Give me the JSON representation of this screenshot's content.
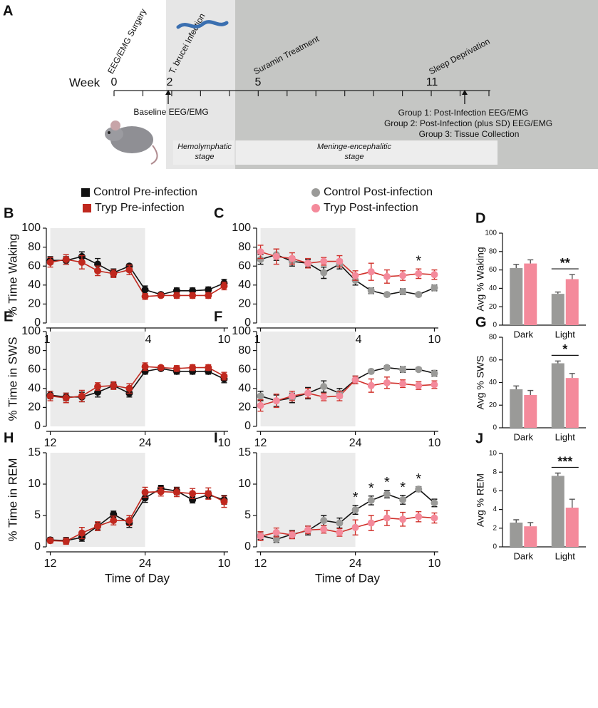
{
  "panel_a": {
    "label": "A",
    "axis_label": "Week",
    "weeks": [
      "0",
      "2",
      "5",
      "11"
    ],
    "events": {
      "surgery": "EEG/EMG Surgery",
      "infection": "T. brucei Infection",
      "treatment": "Suramin Treatment",
      "deprivation": "Sleep Deprivation"
    },
    "baseline": "Baseline EEG/EMG",
    "groups": [
      "Group 1: Post-Infection EEG/EMG",
      "Group 2: Post-Infection (plus SD) EEG/EMG",
      "Group 3: Tissue Collection"
    ],
    "stages": [
      [
        "Hemolymphatic",
        "stage"
      ],
      [
        "Meninge-encephalitic",
        "stage"
      ]
    ]
  },
  "chart_data": [
    {
      "type": "line",
      "panel": "B",
      "ylabel": "% Time Waking",
      "x": [
        12,
        14,
        16,
        18,
        20,
        22,
        24,
        26,
        28,
        30,
        32,
        34
      ],
      "xlim": [
        11.5,
        34.5
      ],
      "xticks": [
        12,
        24,
        {
          "value": 34,
          "label": "10"
        }
      ],
      "ylim": [
        0,
        100
      ],
      "yticks": [
        0,
        20,
        40,
        60,
        80,
        100
      ],
      "dark_phase": [
        12,
        24
      ],
      "series": [
        {
          "name": "Control Pre-infection",
          "color": "#111111",
          "line_color": "#111111",
          "values": [
            66,
            66,
            70,
            62,
            53,
            60,
            35,
            30,
            34,
            34,
            35,
            42
          ],
          "errors": [
            4,
            4,
            5,
            6,
            4,
            2,
            4,
            2,
            3,
            3,
            3,
            4
          ]
        },
        {
          "name": "Tryp Pre-infection",
          "color": "#c0281e",
          "line_color": "#c0281e",
          "values": [
            64,
            67,
            64,
            55,
            52,
            56,
            28,
            29,
            29,
            29,
            29,
            39
          ],
          "errors": [
            5,
            5,
            7,
            5,
            4,
            5,
            3,
            2,
            3,
            3,
            3,
            4
          ]
        }
      ]
    },
    {
      "type": "line",
      "panel": "C",
      "x": [
        12,
        14,
        16,
        18,
        20,
        22,
        24,
        26,
        28,
        30,
        32,
        34
      ],
      "xlim": [
        11.5,
        34.5
      ],
      "xticks": [
        12,
        24,
        {
          "value": 34,
          "label": "10"
        }
      ],
      "ylim": [
        0,
        100
      ],
      "yticks": [
        0,
        20,
        40,
        60,
        80,
        100
      ],
      "dark_phase": [
        12,
        24
      ],
      "series": [
        {
          "name": "Control Post-infection",
          "color": "#9a9a98",
          "line_color": "#111111",
          "values": [
            67,
            72,
            65,
            63,
            53,
            62,
            45,
            34,
            30,
            33,
            30,
            37
          ],
          "errors": [
            5,
            6,
            5,
            4,
            6,
            5,
            5,
            3,
            2,
            3,
            2,
            3
          ]
        },
        {
          "name": "Tryp Post-infection",
          "color": "#f48a9b",
          "line_color": "#d0302a",
          "values": [
            75,
            70,
            68,
            63,
            65,
            65,
            50,
            54,
            49,
            50,
            52,
            51
          ],
          "errors": [
            7,
            8,
            6,
            5,
            4,
            6,
            5,
            9,
            7,
            5,
            5,
            5
          ]
        }
      ],
      "annotations": [
        {
          "text": "*",
          "x": 32
        }
      ]
    },
    {
      "type": "bar",
      "panel": "D",
      "ylabel": "Avg % Waking",
      "categories": [
        "Dark",
        "Light"
      ],
      "ylim": [
        0,
        100
      ],
      "yticks": [
        0,
        20,
        40,
        60,
        80,
        100
      ],
      "series": [
        {
          "color": "#9a9a98",
          "values": [
            62,
            34
          ],
          "errors": [
            4,
            2
          ]
        },
        {
          "color": "#f48a9b",
          "values": [
            67,
            50
          ],
          "errors": [
            4,
            5
          ]
        }
      ],
      "annotations": [
        {
          "text": "**",
          "category": 1
        }
      ]
    },
    {
      "type": "line",
      "panel": "E",
      "ylabel": "% Time in SWS",
      "x": [
        12,
        14,
        16,
        18,
        20,
        22,
        24,
        26,
        28,
        30,
        32,
        34
      ],
      "xlim": [
        11.5,
        34.5
      ],
      "xticks": [
        12,
        24,
        {
          "value": 34,
          "label": "10"
        }
      ],
      "ylim": [
        0,
        100
      ],
      "yticks": [
        0,
        20,
        40,
        60,
        80,
        100
      ],
      "dark_phase": [
        12,
        24
      ],
      "series": [
        {
          "color": "#111111",
          "line_color": "#111111",
          "values": [
            33,
            31,
            31,
            36,
            43,
            35,
            58,
            61,
            58,
            58,
            58,
            50
          ],
          "errors": [
            4,
            4,
            5,
            5,
            3,
            4,
            3,
            2,
            3,
            3,
            3,
            4
          ]
        },
        {
          "color": "#c0281e",
          "line_color": "#c0281e",
          "values": [
            32,
            30,
            32,
            42,
            43,
            40,
            63,
            62,
            61,
            62,
            62,
            53
          ],
          "errors": [
            5,
            5,
            6,
            4,
            4,
            5,
            4,
            2,
            3,
            3,
            3,
            4
          ]
        }
      ]
    },
    {
      "type": "line",
      "panel": "F",
      "x": [
        12,
        14,
        16,
        18,
        20,
        22,
        24,
        26,
        28,
        30,
        32,
        34
      ],
      "xlim": [
        11.5,
        34.5
      ],
      "xticks": [
        12,
        24,
        {
          "value": 34,
          "label": "10"
        }
      ],
      "ylim": [
        0,
        100
      ],
      "yticks": [
        0,
        20,
        40,
        60,
        80,
        100
      ],
      "dark_phase": [
        12,
        24
      ],
      "series": [
        {
          "color": "#9a9a98",
          "line_color": "#111111",
          "values": [
            32,
            27,
            30,
            35,
            42,
            35,
            49,
            58,
            62,
            60,
            60,
            56
          ],
          "errors": [
            5,
            6,
            5,
            6,
            6,
            5,
            4,
            2,
            2,
            3,
            2,
            3
          ]
        },
        {
          "color": "#f48a9b",
          "line_color": "#d0302a",
          "values": [
            22,
            27,
            32,
            35,
            31,
            32,
            49,
            43,
            46,
            45,
            43,
            44
          ],
          "errors": [
            6,
            7,
            5,
            5,
            4,
            5,
            4,
            7,
            6,
            4,
            4,
            4
          ]
        }
      ]
    },
    {
      "type": "bar",
      "panel": "G",
      "ylabel": "Avg % SWS",
      "categories": [
        "Dark",
        "Light"
      ],
      "ylim": [
        0,
        80
      ],
      "yticks": [
        0,
        20,
        40,
        60,
        80
      ],
      "series": [
        {
          "color": "#9a9a98",
          "values": [
            34,
            57
          ],
          "errors": [
            3,
            2
          ]
        },
        {
          "color": "#f48a9b",
          "values": [
            29,
            44
          ],
          "errors": [
            4,
            4
          ]
        }
      ],
      "annotations": [
        {
          "text": "*",
          "category": 1
        }
      ]
    },
    {
      "type": "line",
      "panel": "H",
      "ylabel": "% Time in REM",
      "xlabel": "Time of Day",
      "x": [
        12,
        14,
        16,
        18,
        20,
        22,
        24,
        26,
        28,
        30,
        32,
        34
      ],
      "xlim": [
        11.5,
        34.5
      ],
      "xticks": [
        12,
        24,
        {
          "value": 34,
          "label": "10"
        }
      ],
      "ylim": [
        0,
        15
      ],
      "yticks": [
        0,
        5,
        10,
        15
      ],
      "dark_phase": [
        12,
        24
      ],
      "series": [
        {
          "color": "#111111",
          "line_color": "#111111",
          "values": [
            1.1,
            1.0,
            1.5,
            3.3,
            5.2,
            3.8,
            7.8,
            9.3,
            8.9,
            7.5,
            8.3,
            7.5
          ],
          "errors": [
            0.4,
            0.5,
            0.6,
            0.6,
            0.5,
            0.7,
            0.7,
            0.5,
            0.6,
            0.5,
            0.6,
            0.7
          ]
        },
        {
          "color": "#c0281e",
          "line_color": "#c0281e",
          "values": [
            1.0,
            0.9,
            2.2,
            3.3,
            4.2,
            4.2,
            8.7,
            8.8,
            8.7,
            8.5,
            8.5,
            7.2
          ],
          "errors": [
            0.4,
            0.5,
            0.9,
            0.7,
            0.7,
            0.8,
            0.8,
            0.7,
            0.7,
            0.8,
            0.9,
            0.9
          ]
        }
      ]
    },
    {
      "type": "line",
      "panel": "I",
      "xlabel": "Time of Day",
      "x": [
        12,
        14,
        16,
        18,
        20,
        22,
        24,
        26,
        28,
        30,
        32,
        34
      ],
      "xlim": [
        11.5,
        34.5
      ],
      "xticks": [
        12,
        24,
        {
          "value": 34,
          "label": "10"
        }
      ],
      "ylim": [
        0,
        15
      ],
      "yticks": [
        0,
        5,
        10,
        15
      ],
      "dark_phase": [
        12,
        24
      ],
      "series": [
        {
          "color": "#9a9a98",
          "line_color": "#111111",
          "values": [
            1.8,
            1.2,
            2.0,
            2.6,
            4.2,
            3.8,
            5.9,
            7.4,
            8.4,
            7.5,
            9.2,
            7.0
          ],
          "errors": [
            0.6,
            0.5,
            0.6,
            0.7,
            0.8,
            0.8,
            0.7,
            0.7,
            0.6,
            0.7,
            0.4,
            0.6
          ]
        },
        {
          "color": "#f48a9b",
          "line_color": "#d0302a",
          "values": [
            1.7,
            2.3,
            1.9,
            2.7,
            2.8,
            2.3,
            3.1,
            3.8,
            4.6,
            4.4,
            4.8,
            4.6
          ],
          "errors": [
            0.7,
            0.7,
            0.6,
            0.6,
            0.6,
            0.6,
            1.2,
            1.2,
            1.2,
            1.1,
            0.8,
            0.8
          ]
        }
      ],
      "annotations": [
        {
          "text": "*",
          "x": 24
        },
        {
          "text": "*",
          "x": 26
        },
        {
          "text": "*",
          "x": 28
        },
        {
          "text": "*",
          "x": 30
        },
        {
          "text": "*",
          "x": 32
        }
      ]
    },
    {
      "type": "bar",
      "panel": "J",
      "ylabel": "Avg % REM",
      "categories": [
        "Dark",
        "Light"
      ],
      "ylim": [
        0,
        10
      ],
      "yticks": [
        0,
        2,
        4,
        6,
        8,
        10
      ],
      "series": [
        {
          "color": "#9a9a98",
          "values": [
            2.6,
            7.6
          ],
          "errors": [
            0.3,
            0.3
          ]
        },
        {
          "color": "#f48a9b",
          "values": [
            2.2,
            4.2
          ],
          "errors": [
            0.4,
            0.9
          ]
        }
      ],
      "annotations": [
        {
          "text": "***",
          "category": 1
        }
      ]
    }
  ]
}
